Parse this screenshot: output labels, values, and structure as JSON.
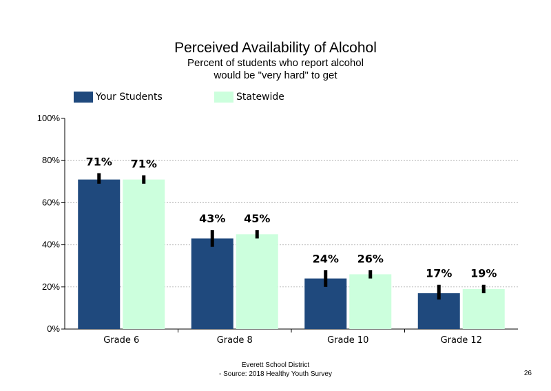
{
  "title": "Perceived Availability of Alcohol",
  "subtitle_line1": "Percent of students who report alcohol",
  "subtitle_line2": "would be \"very hard\" to get",
  "footer_line1": "Everett School District",
  "footer_line2": "- Source: 2018 Healthy Youth Survey",
  "page_number": "26",
  "colors": {
    "your_students": "#1F497D",
    "statewide": "#CCFFDD",
    "error_bar": "#000000",
    "grid": "#BBBBBB"
  },
  "chart_data": {
    "type": "bar",
    "categories": [
      "Grade 6",
      "Grade 8",
      "Grade 10",
      "Grade 12"
    ],
    "series": [
      {
        "name": "Your Students",
        "values": [
          71,
          43,
          24,
          17
        ],
        "labels": [
          "71%",
          "43%",
          "24%",
          "17%"
        ],
        "error_low": [
          69,
          39,
          20,
          14
        ],
        "error_high": [
          74,
          47,
          28,
          21
        ]
      },
      {
        "name": "Statewide",
        "values": [
          71,
          45,
          26,
          19
        ],
        "labels": [
          "71%",
          "45%",
          "26%",
          "19%"
        ],
        "error_low": [
          69,
          43,
          24,
          17
        ],
        "error_high": [
          73,
          47,
          28,
          21
        ]
      }
    ],
    "ylim": [
      0,
      100
    ],
    "yticks": [
      "0%",
      "20%",
      "40%",
      "60%",
      "80%",
      "100%"
    ],
    "grid": true,
    "legend_position": "top-left"
  }
}
